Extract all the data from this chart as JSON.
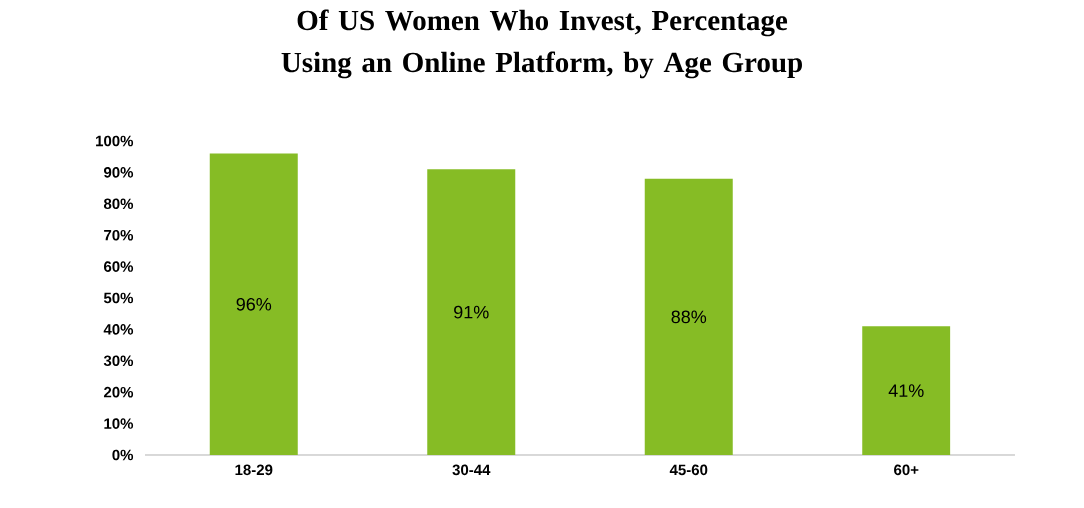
{
  "chart_data": {
    "type": "bar",
    "title": "Of US Women Who Invest, Percentage Using an Online Platform, by Age Group",
    "categories": [
      "18-29",
      "30-44",
      "45-60",
      "60+"
    ],
    "values": [
      96,
      91,
      88,
      41
    ],
    "value_labels": [
      "96%",
      "91%",
      "88%",
      "41%"
    ],
    "color": "#86bc25",
    "ylim": [
      0,
      100
    ],
    "yticks": [
      {
        "value": 0,
        "label": "0%"
      },
      {
        "value": 10,
        "label": "10%"
      },
      {
        "value": 20,
        "label": "20%"
      },
      {
        "value": 30,
        "label": "30%"
      },
      {
        "value": 40,
        "label": "40%"
      },
      {
        "value": 50,
        "label": "50%"
      },
      {
        "value": 60,
        "label": "60%"
      },
      {
        "value": 70,
        "label": "70%"
      },
      {
        "value": 80,
        "label": "80%"
      },
      {
        "value": 90,
        "label": "90%"
      },
      {
        "value": 100,
        "label": "100%"
      }
    ]
  }
}
